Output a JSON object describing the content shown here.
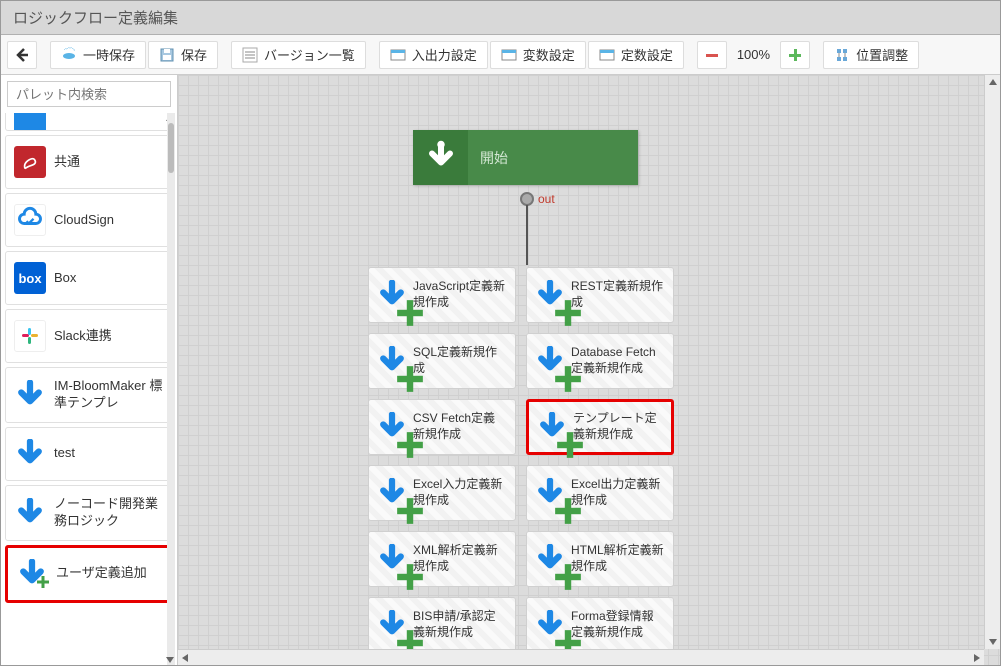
{
  "window": {
    "title": "ロジックフロー定義編集"
  },
  "toolbar": {
    "temp_save": "一時保存",
    "save": "保存",
    "versions": "バージョン一覧",
    "io_settings": "入出力設定",
    "var_settings": "変数設定",
    "const_settings": "定数設定",
    "zoom": "100%",
    "align": "位置調整"
  },
  "sidebar": {
    "search_placeholder": "パレット内検索",
    "items": [
      {
        "label": "共通",
        "icon": "pdf",
        "bg": "#c1272d"
      },
      {
        "label": "CloudSign",
        "icon": "cloudsign",
        "bg": "#ffffff"
      },
      {
        "label": "Box",
        "icon": "box",
        "bg": "#0061d5"
      },
      {
        "label": "Slack連携",
        "icon": "slack",
        "bg": "#ffffff"
      },
      {
        "label": "IM-BloomMaker 標準テンプレ",
        "icon": "downarrow",
        "bg": "#1e88e5"
      },
      {
        "label": "test",
        "icon": "downarrow",
        "bg": "#1e88e5"
      },
      {
        "label": "ノーコード開発業務ロジック",
        "icon": "downarrow",
        "bg": "#1e88e5"
      },
      {
        "label": "ユーザ定義追加",
        "icon": "downplus",
        "bg": "#1e88e5",
        "highlight": true
      }
    ]
  },
  "canvas": {
    "start_label": "開始",
    "out_label": "out",
    "actions": [
      {
        "label": "JavaScript定義新規作成"
      },
      {
        "label": "REST定義新規作成"
      },
      {
        "label": "SQL定義新規作成"
      },
      {
        "label": "Database Fetch定義新規作成"
      },
      {
        "label": "CSV Fetch定義新規作成"
      },
      {
        "label": "テンプレート定義新規作成",
        "highlight": true
      },
      {
        "label": "Excel入力定義新規作成"
      },
      {
        "label": "Excel出力定義新規作成"
      },
      {
        "label": "XML解析定義新規作成"
      },
      {
        "label": "HTML解析定義新規作成"
      },
      {
        "label": "BIS申請/承認定義新規作成"
      },
      {
        "label": "Forma登録情報定義新規作成"
      }
    ]
  },
  "colors": {
    "accent_blue": "#1e88e5",
    "accent_green": "#43a047",
    "highlight": "#e60000"
  }
}
